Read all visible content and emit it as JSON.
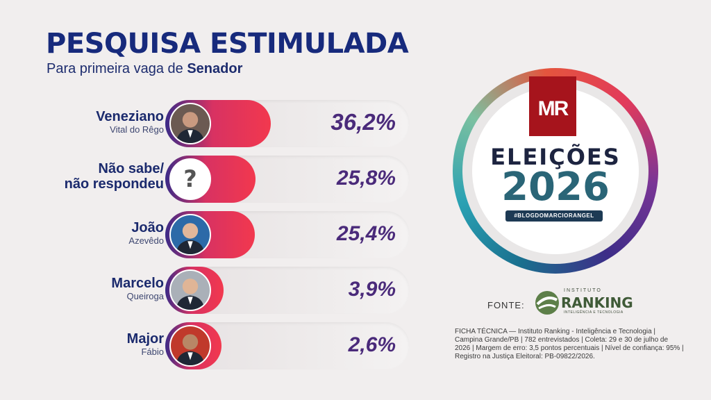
{
  "header": {
    "title": "PESQUISA ESTIMULADA",
    "subtitle_prefix": "Para primeira vaga de",
    "subtitle_bold": "Senador"
  },
  "chart_data": {
    "type": "bar",
    "title": "PESQUISA ESTIMULADA",
    "subtitle": "Para primeira vaga de Senador",
    "categories": [
      "Veneziano Vital do Rêgo",
      "Não sabe/ não respondeu",
      "João Azevêdo",
      "Marcelo Queiroga",
      "Major Fábio"
    ],
    "values": [
      36.2,
      25.8,
      25.4,
      3.9,
      2.6
    ],
    "value_labels": [
      "36,2%",
      "25,8%",
      "25,4%",
      "3,9%",
      "2,6%"
    ],
    "rows": [
      {
        "first": "Veneziano",
        "last": "Vital do Rêgo",
        "value": 36.2,
        "label": "36,2%",
        "avatar": "person-photo"
      },
      {
        "first": "Não sabe/",
        "last": "não respondeu",
        "value": 25.8,
        "label": "25,8%",
        "avatar": "question-mark-icon"
      },
      {
        "first": "João",
        "last": "Azevêdo",
        "value": 25.4,
        "label": "25,4%",
        "avatar": "person-photo"
      },
      {
        "first": "Marcelo",
        "last": "Queiroga",
        "value": 3.9,
        "label": "3,9%",
        "avatar": "person-photo"
      },
      {
        "first": "Major",
        "last": "Fábio",
        "value": 2.6,
        "label": "2,6%",
        "avatar": "person-photo"
      }
    ]
  },
  "logo": {
    "mr": "MR",
    "eleicoes": "ELEIÇÕES",
    "year": "2026",
    "hashtag": "#BLOGDOMARCIORANGEL"
  },
  "source": {
    "label": "FONTE:",
    "institute_small": "INSTITUTO",
    "institute_big": "RANKING",
    "institute_tag": "INTELIGÊNCIA E TECNOLOGIA"
  },
  "ficha": "FICHA TÉCNICA — Instituto Ranking - Inteligência e Tecnologia | Campina Grande/PB | 782 entrevistados | Coleta: 29 e 30 de julho de 2026 | Margem de erro: 3,5 pontos percentuais | Nível de confiança: 95% | Registro na Justiça Eleitoral: PB-09822/2026.",
  "colors": {
    "title": "#172a7c",
    "bar_start": "#3b2a88",
    "bar_end": "#f2384e",
    "value_text": "#4a2a7a"
  }
}
